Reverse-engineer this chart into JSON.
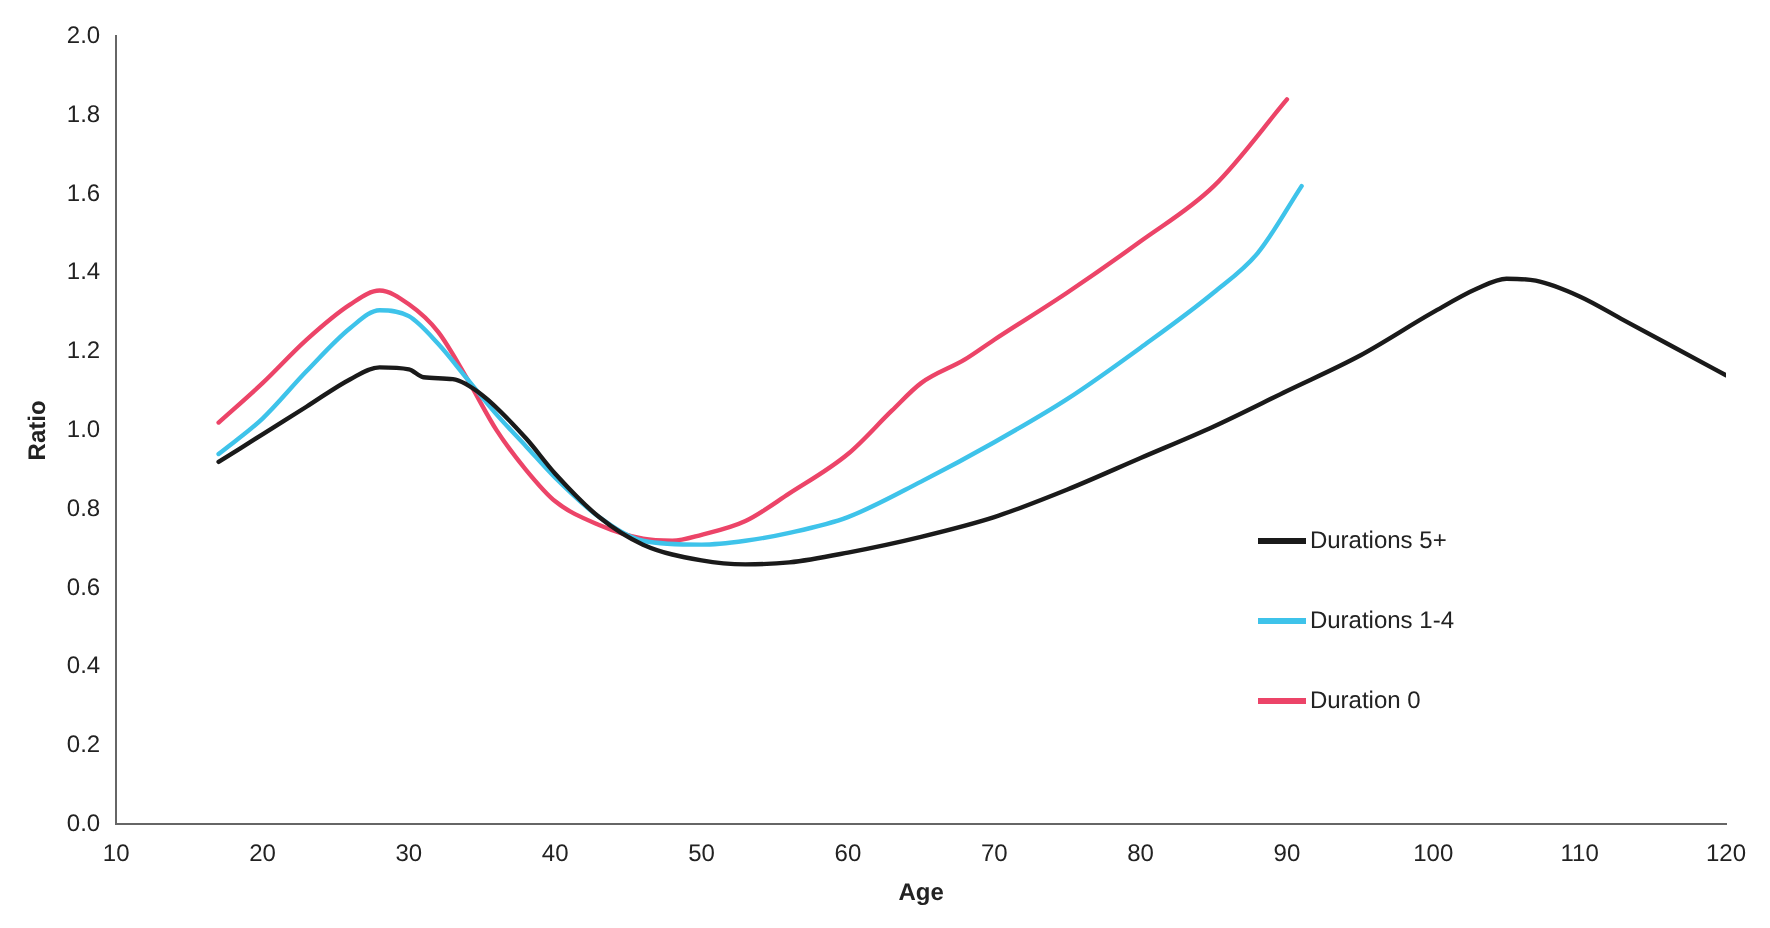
{
  "chart_data": {
    "type": "line",
    "xlabel": "Age",
    "ylabel": "Ratio",
    "xlim": [
      10,
      120
    ],
    "ylim": [
      0,
      2
    ],
    "xticks": [
      10,
      20,
      30,
      40,
      50,
      60,
      70,
      80,
      90,
      100,
      110,
      120
    ],
    "yticks": [
      {
        "value": 0,
        "label": "0.0"
      },
      {
        "value": 0.2,
        "label": "0.2"
      },
      {
        "value": 0.4,
        "label": "0.4"
      },
      {
        "value": 0.6,
        "label": "0.6"
      },
      {
        "value": 0.8,
        "label": "0.8"
      },
      {
        "value": 1,
        "label": "1.0"
      },
      {
        "value": 1.2,
        "label": "1.2"
      },
      {
        "value": 1.4,
        "label": "1.4"
      },
      {
        "value": 1.6,
        "label": "1.6"
      },
      {
        "value": 1.8,
        "label": "1.8"
      },
      {
        "value": 2,
        "label": "2.0"
      }
    ],
    "grid": false,
    "legend": "right",
    "marker": "none",
    "line_style": "solid",
    "series": [
      {
        "name": "Durations 5+",
        "color": "#1a1a1a",
        "x": [
          17,
          20,
          23,
          26,
          28,
          30,
          31,
          33,
          35,
          38,
          40,
          43,
          46,
          50,
          53,
          56,
          60,
          65,
          70,
          75,
          80,
          85,
          90,
          95,
          100,
          103,
          105,
          107,
          110,
          113,
          116,
          120
        ],
        "values": [
          0.92,
          0.99,
          1.06,
          1.13,
          1.16,
          1.155,
          1.135,
          1.13,
          1.09,
          0.98,
          0.89,
          0.78,
          0.71,
          0.67,
          0.66,
          0.665,
          0.69,
          0.73,
          0.78,
          0.85,
          0.93,
          1.01,
          1.1,
          1.19,
          1.3,
          1.36,
          1.385,
          1.38,
          1.34,
          1.28,
          1.22,
          1.14
        ]
      },
      {
        "name": "Durations 1-4",
        "color": "#3ec3ea",
        "x": [
          17,
          20,
          23,
          26,
          28,
          30,
          32,
          34,
          36,
          38,
          40,
          43,
          46,
          50,
          53,
          56,
          60,
          65,
          70,
          75,
          80,
          85,
          88,
          91
        ],
        "values": [
          0.94,
          1.03,
          1.15,
          1.26,
          1.305,
          1.29,
          1.22,
          1.13,
          1.04,
          0.96,
          0.88,
          0.78,
          0.72,
          0.71,
          0.72,
          0.74,
          0.78,
          0.87,
          0.97,
          1.08,
          1.21,
          1.35,
          1.45,
          1.62
        ]
      },
      {
        "name": "Duration 0",
        "color": "#ec4468",
        "x": [
          17,
          20,
          23,
          26,
          28,
          30,
          32,
          34,
          36,
          38,
          40,
          43,
          46,
          48,
          50,
          53,
          56,
          60,
          63,
          65,
          68,
          70,
          75,
          80,
          85,
          90
        ],
        "values": [
          1.02,
          1.12,
          1.23,
          1.32,
          1.355,
          1.32,
          1.25,
          1.13,
          1.0,
          0.9,
          0.82,
          0.76,
          0.725,
          0.72,
          0.735,
          0.77,
          0.84,
          0.94,
          1.05,
          1.12,
          1.18,
          1.23,
          1.35,
          1.48,
          1.62,
          1.84
        ]
      }
    ]
  }
}
